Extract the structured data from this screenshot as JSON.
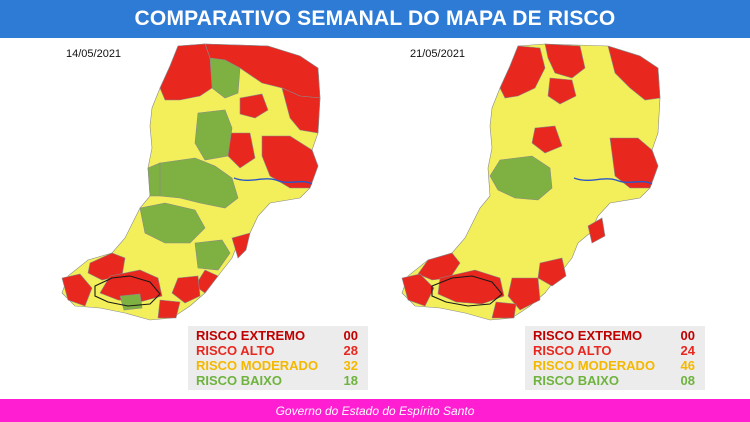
{
  "header": {
    "title": "COMPARATIVO SEMANAL DO MAPA DE RISCO"
  },
  "colors": {
    "header_bg": "#2e7bd6",
    "extremo": "#c00000",
    "alto": "#e8271f",
    "moderado": "#f2ef5a",
    "baixo": "#7fb042",
    "footer_bg": "#ff1ed2"
  },
  "maps": [
    {
      "date": "14/05/2021",
      "legend": [
        {
          "label": "RISCO EXTREMO",
          "value": "00",
          "color": "#c00000"
        },
        {
          "label": "RISCO ALTO",
          "value": "28",
          "color": "#e8271f"
        },
        {
          "label": "RISCO MODERADO",
          "value": "32",
          "color": "#f5b800"
        },
        {
          "label": "RISCO BAIXO",
          "value": "18",
          "color": "#6fb33f"
        }
      ]
    },
    {
      "date": "21/05/2021",
      "legend": [
        {
          "label": "RISCO EXTREMO",
          "value": "00",
          "color": "#c00000"
        },
        {
          "label": "RISCO ALTO",
          "value": "24",
          "color": "#e8271f"
        },
        {
          "label": "RISCO MODERADO",
          "value": "46",
          "color": "#f5b800"
        },
        {
          "label": "RISCO BAIXO",
          "value": "08",
          "color": "#6fb33f"
        }
      ]
    }
  ],
  "footer": {
    "text": "Governo do Estado do Espírito Santo"
  }
}
